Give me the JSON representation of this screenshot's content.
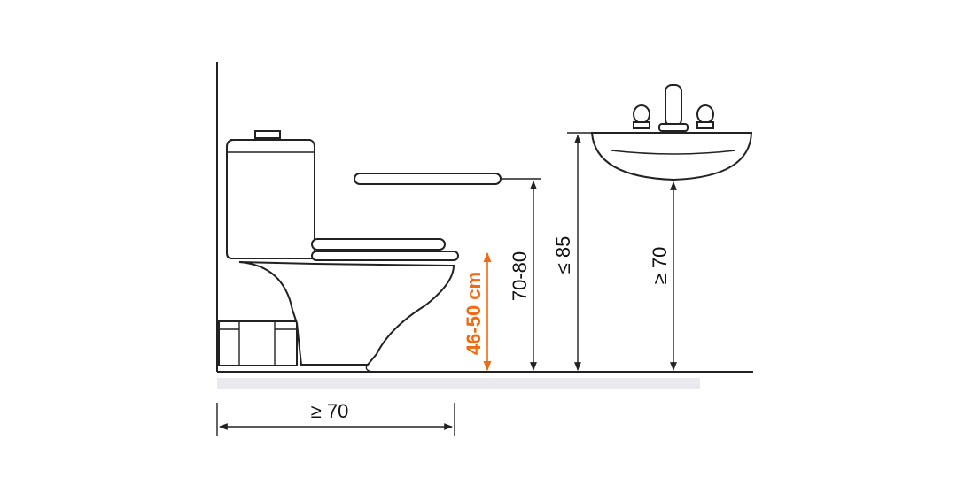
{
  "dimensions": {
    "toilet_seat_height": "46-50 cm",
    "grab_bar_height": "70-80",
    "sink_rim_height": "≤ 85",
    "sink_underside_clearance": "≥ 70",
    "toilet_front_clearance": "≥ 70"
  },
  "colors": {
    "accent": "#f26a0f",
    "line": "#222222",
    "background": "#ffffff"
  }
}
